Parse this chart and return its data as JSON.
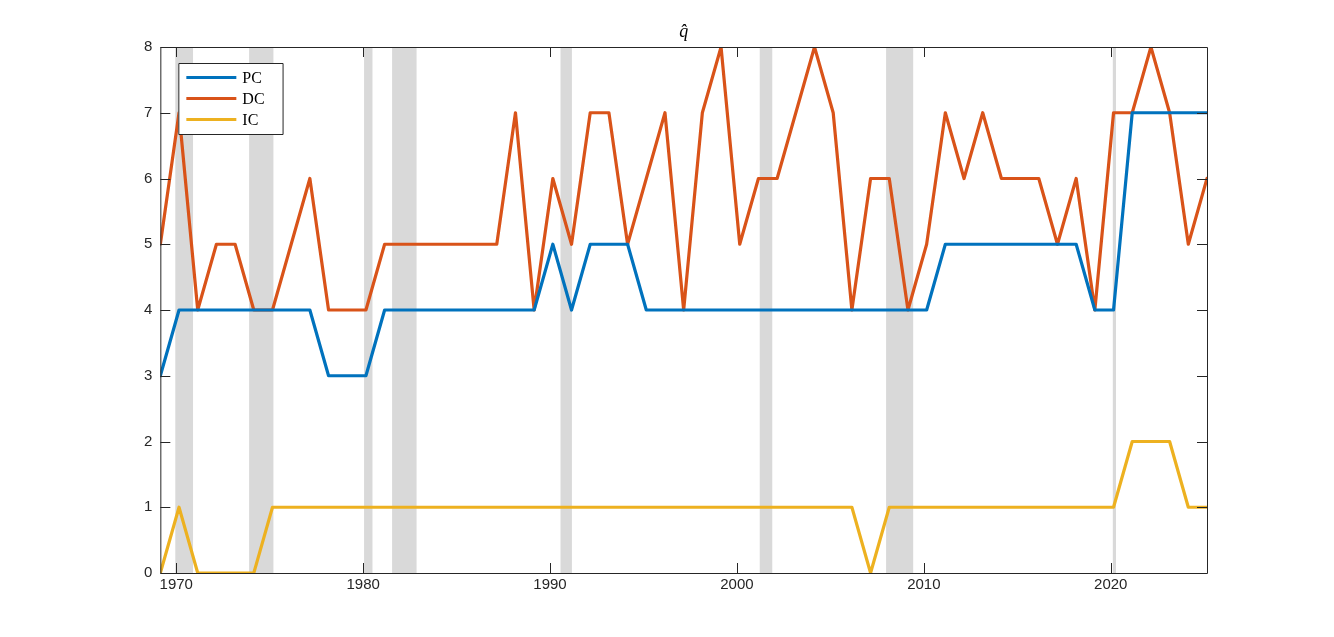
{
  "chart_data": {
    "type": "line",
    "title": "q̂",
    "x": [
      1969.15,
      1970.15,
      1971.15,
      1972.15,
      1973.15,
      1974.15,
      1975.15,
      1976.15,
      1977.15,
      1978.15,
      1979.15,
      1980.15,
      1981.15,
      1982.15,
      1983.15,
      1984.15,
      1985.15,
      1986.15,
      1987.15,
      1988.15,
      1989.15,
      1990.15,
      1991.15,
      1992.15,
      1993.15,
      1994.15,
      1995.15,
      1996.15,
      1997.15,
      1998.15,
      1999.15,
      2000.15,
      2001.15,
      2002.15,
      2003.15,
      2004.15,
      2005.15,
      2006.15,
      2007.15,
      2008.15,
      2009.15,
      2010.15,
      2011.15,
      2012.15,
      2013.15,
      2014.15,
      2015.15,
      2016.15,
      2017.15,
      2018.15,
      2019.15,
      2020.15,
      2021.15,
      2022.15,
      2023.15,
      2024.15,
      2025.15
    ],
    "series": [
      {
        "name": "PC",
        "color": "#0072bd",
        "values": [
          3,
          4,
          4,
          4,
          4,
          4,
          4,
          4,
          4,
          3,
          3,
          3,
          4,
          4,
          4,
          4,
          4,
          4,
          4,
          4,
          4,
          5,
          4,
          5,
          5,
          5,
          4,
          4,
          4,
          4,
          4,
          4,
          4,
          4,
          4,
          4,
          4,
          4,
          4,
          4,
          4,
          4,
          5,
          5,
          5,
          5,
          5,
          5,
          5,
          5,
          4,
          4,
          7,
          7,
          7,
          7,
          7
        ]
      },
      {
        "name": "DC",
        "color": "#d95319",
        "values": [
          5,
          7,
          4,
          5,
          5,
          4,
          4,
          5,
          6,
          4,
          4,
          4,
          5,
          5,
          5,
          5,
          5,
          5,
          5,
          7,
          4,
          6,
          5,
          7,
          7,
          5,
          6,
          7,
          4,
          7,
          8,
          5,
          6,
          6,
          7,
          8,
          7,
          4,
          6,
          6,
          4,
          5,
          7,
          6,
          7,
          6,
          6,
          6,
          5,
          6,
          4,
          7,
          7,
          8,
          7,
          5,
          6
        ]
      },
      {
        "name": "IC",
        "color": "#edb120",
        "values": [
          0,
          1,
          0,
          0,
          0,
          0,
          1,
          1,
          1,
          1,
          1,
          1,
          1,
          1,
          1,
          1,
          1,
          1,
          1,
          1,
          1,
          1,
          1,
          1,
          1,
          1,
          1,
          1,
          1,
          1,
          1,
          1,
          1,
          1,
          1,
          1,
          1,
          1,
          0,
          1,
          1,
          1,
          1,
          1,
          1,
          1,
          1,
          1,
          1,
          1,
          1,
          1,
          2,
          2,
          2,
          1,
          1
        ]
      }
    ],
    "bands": [
      {
        "axis": "x",
        "from": 1969.95,
        "to": 1970.9,
        "color": "#d9d9d9"
      },
      {
        "axis": "x",
        "from": 1973.9,
        "to": 1975.2,
        "color": "#d9d9d9"
      },
      {
        "axis": "x",
        "from": 1980.05,
        "to": 1980.5,
        "color": "#d9d9d9"
      },
      {
        "axis": "x",
        "from": 1981.55,
        "to": 1982.86,
        "color": "#d9d9d9"
      },
      {
        "axis": "x",
        "from": 1990.56,
        "to": 1991.17,
        "color": "#d9d9d9"
      },
      {
        "axis": "x",
        "from": 2001.22,
        "to": 2001.89,
        "color": "#d9d9d9"
      },
      {
        "axis": "x",
        "from": 2007.98,
        "to": 2009.43,
        "color": "#d9d9d9"
      },
      {
        "axis": "x",
        "from": 2020.11,
        "to": 2020.28,
        "color": "#d9d9d9"
      }
    ],
    "xlim": [
      1969.15,
      2025.15
    ],
    "xticks": [
      1970,
      1980,
      1990,
      2000,
      2010,
      2020
    ],
    "ylim": [
      0,
      8
    ],
    "yticks": [
      0,
      1,
      2,
      3,
      4,
      5,
      6,
      7,
      8
    ],
    "legend": "top left",
    "line_style": "solid",
    "marker": "none"
  }
}
